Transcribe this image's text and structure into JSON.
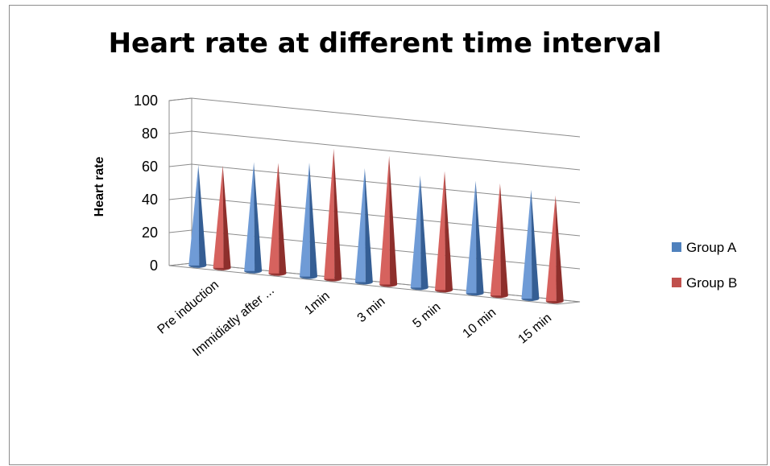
{
  "chart_data": {
    "type": "bar",
    "title": "Heart rate at different time interval",
    "xlabel": "",
    "ylabel": "Heart rate",
    "ylim": [
      0,
      100
    ],
    "yticks": [
      0,
      20,
      40,
      60,
      80,
      100
    ],
    "categories": [
      "Pre induction",
      "Immidiatly after ...",
      "1min",
      "3 min",
      "5 min",
      "10 min",
      "15 min"
    ],
    "series": [
      {
        "name": "Group A",
        "color": "#4f81bd",
        "values": [
          61,
          66,
          69,
          69,
          68,
          68,
          66
        ]
      },
      {
        "name": "Group B",
        "color": "#c0504d",
        "values": [
          62,
          67,
          79,
          78,
          72,
          68,
          64
        ]
      }
    ],
    "grid": true,
    "legend": "right",
    "shape": "3d-cone"
  }
}
